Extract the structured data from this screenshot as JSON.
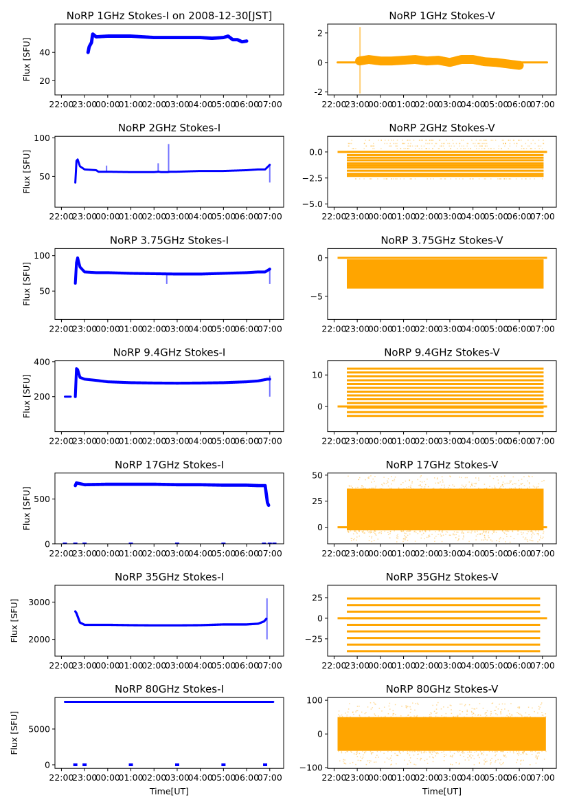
{
  "figure": {
    "xlabel": "Time[UT]",
    "ylabel": "Flux [SFU]",
    "colors": {
      "stokes_i": "#0000ff",
      "stokes_v": "#ffa500",
      "axes": "#000000"
    }
  },
  "chart_data": [
    {
      "type": "scatter",
      "panel": "1GHz-I",
      "title": "NoRP 1GHz Stokes-I on 2008-12-30[JST]",
      "xlabel": "",
      "ylabel": "Flux [SFU]",
      "x_ticks": [
        "22:00",
        "23:00",
        "00:00",
        "01:00",
        "02:00",
        "03:00",
        "04:00",
        "05:00",
        "06:00",
        "07:00"
      ],
      "xlim_hours": [
        21.72,
        31.6
      ],
      "ylim": [
        10,
        60
      ],
      "y_ticks": [
        20,
        40
      ],
      "color": "#0000ff",
      "series": [
        {
          "name": "Stokes-I",
          "x_hours": [
            23.15,
            23.2,
            23.3,
            23.35,
            23.5,
            24.0,
            24.5,
            25.0,
            25.5,
            26.0,
            26.5,
            27.0,
            27.5,
            28.0,
            28.5,
            29.0,
            29.2,
            29.4,
            29.6,
            29.8,
            30.0
          ],
          "y": [
            40,
            44,
            47,
            53,
            51,
            51.5,
            51.5,
            51.5,
            51,
            50.5,
            50.5,
            50.5,
            50.5,
            50.5,
            50,
            50.5,
            51.5,
            49,
            49,
            47.5,
            48
          ],
          "spread": 1.2
        }
      ]
    },
    {
      "type": "scatter",
      "panel": "1GHz-V",
      "title": "NoRP 1GHz Stokes-V",
      "xlabel": "",
      "ylabel": "",
      "x_ticks": [
        "22:00",
        "23:00",
        "00:00",
        "01:00",
        "02:00",
        "03:00",
        "04:00",
        "05:00",
        "06:00",
        "07:00"
      ],
      "xlim_hours": [
        21.72,
        31.6
      ],
      "ylim": [
        -2.2,
        2.6
      ],
      "y_ticks": [
        -2,
        0,
        2
      ],
      "color": "#ffa500",
      "series": [
        {
          "name": "baseline",
          "x_hours": [
            22.15,
            31.2
          ],
          "y": [
            0,
            0
          ],
          "spread": 0.02
        },
        {
          "name": "Stokes-V",
          "x_hours": [
            23.1,
            23.5,
            24.0,
            24.5,
            25.0,
            25.5,
            26.0,
            26.5,
            27.0,
            27.5,
            28.0,
            28.5,
            29.0,
            29.5,
            30.0
          ],
          "y": [
            0.1,
            0.2,
            0.1,
            0.1,
            0.15,
            0.2,
            0.1,
            0.15,
            0.0,
            0.2,
            0.2,
            0.05,
            0.0,
            -0.1,
            -0.2
          ],
          "spread": 0.3
        }
      ],
      "annotations": [
        {
          "x_hours": 23.12,
          "y_range": [
            -2.1,
            2.4
          ],
          "note": "spike"
        }
      ]
    },
    {
      "type": "scatter",
      "panel": "2GHz-I",
      "title": "NoRP 2GHz Stokes-I",
      "xlabel": "",
      "ylabel": "Flux [SFU]",
      "x_ticks": [
        "22:00",
        "23:00",
        "00:00",
        "01:00",
        "02:00",
        "03:00",
        "04:00",
        "05:00",
        "06:00",
        "07:00"
      ],
      "xlim_hours": [
        21.72,
        31.6
      ],
      "ylim": [
        10,
        102
      ],
      "y_ticks": [
        50,
        100
      ],
      "color": "#0000ff",
      "series": [
        {
          "name": "Stokes-I",
          "x_hours": [
            22.6,
            22.65,
            22.7,
            22.8,
            23.0,
            23.5,
            23.6,
            24.0,
            25.0,
            26.0,
            26.2,
            26.3,
            26.6,
            26.7,
            27.0,
            28.0,
            29.0,
            30.0,
            30.5,
            30.8,
            31.0
          ],
          "y": [
            42,
            70,
            72,
            63,
            59,
            58,
            56,
            56,
            55.5,
            55.5,
            56,
            55.5,
            55.5,
            56,
            56,
            57,
            57,
            58,
            59,
            59,
            65
          ],
          "spread": 1.2
        }
      ],
      "annotations": [
        {
          "x_hours": 26.18,
          "y_range": [
            55,
            67
          ],
          "note": "spike"
        },
        {
          "x_hours": 26.63,
          "y_range": [
            55,
            92
          ],
          "note": "spike"
        },
        {
          "x_hours": 23.95,
          "y_range": [
            56,
            64
          ],
          "note": "spike"
        },
        {
          "x_hours": 31.0,
          "y_range": [
            42,
            66
          ],
          "note": "spike"
        }
      ]
    },
    {
      "type": "scatter",
      "panel": "2GHz-V",
      "title": "NoRP 2GHz Stokes-V",
      "xlabel": "",
      "ylabel": "",
      "x_ticks": [
        "22:00",
        "23:00",
        "00:00",
        "01:00",
        "02:00",
        "03:00",
        "04:00",
        "05:00",
        "06:00",
        "07:00"
      ],
      "xlim_hours": [
        21.72,
        31.6
      ],
      "ylim": [
        -5.3,
        1.5
      ],
      "y_ticks": [
        -5.0,
        -2.5,
        0.0
      ],
      "y_tick_labels": [
        "−5.0",
        "−2.5",
        "0.0"
      ],
      "color": "#ffa500",
      "quantized_levels": [
        1.1,
        0.8,
        0.55,
        0.3,
        0.0,
        -0.3,
        -0.55,
        -0.8,
        -1.1,
        -1.3,
        -1.5,
        -1.8,
        -2.1,
        -2.3,
        -2.6
      ],
      "series": [
        {
          "name": "baseline",
          "x_hours": [
            22.15,
            31.2
          ],
          "y": [
            0,
            0
          ]
        },
        {
          "name": "Stokes-V",
          "x_hours": [
            22.55,
            31.05
          ],
          "y_band": [
            -2.3,
            0.0
          ]
        }
      ]
    },
    {
      "type": "scatter",
      "panel": "3.75GHz-I",
      "title": "NoRP 3.75GHz Stokes-I",
      "xlabel": "",
      "ylabel": "Flux [SFU]",
      "x_ticks": [
        "22:00",
        "23:00",
        "00:00",
        "01:00",
        "02:00",
        "03:00",
        "04:00",
        "05:00",
        "06:00",
        "07:00"
      ],
      "xlim_hours": [
        21.72,
        31.6
      ],
      "ylim": [
        10,
        110
      ],
      "y_ticks": [
        50,
        100
      ],
      "color": "#0000ff",
      "series": [
        {
          "name": "Stokes-I",
          "x_hours": [
            22.6,
            22.65,
            22.7,
            22.8,
            23.0,
            23.5,
            24.0,
            25.0,
            26.0,
            27.0,
            28.0,
            29.0,
            30.0,
            30.5,
            30.8,
            31.0
          ],
          "y": [
            61,
            90,
            97,
            84,
            77,
            76,
            76,
            75,
            74.5,
            74,
            74,
            75,
            76,
            77,
            77,
            81
          ],
          "spread": 2
        }
      ],
      "annotations": [
        {
          "x_hours": 26.55,
          "y_range": [
            60,
            75
          ],
          "note": "dip"
        },
        {
          "x_hours": 31.0,
          "y_range": [
            60,
            80
          ],
          "note": "dip"
        }
      ]
    },
    {
      "type": "scatter",
      "panel": "3.75GHz-V",
      "title": "NoRP 3.75GHz Stokes-V",
      "xlabel": "",
      "ylabel": "",
      "x_ticks": [
        "22:00",
        "23:00",
        "00:00",
        "01:00",
        "02:00",
        "03:00",
        "04:00",
        "05:00",
        "06:00",
        "07:00"
      ],
      "xlim_hours": [
        21.72,
        31.6
      ],
      "ylim": [
        -8,
        1.2
      ],
      "y_ticks": [
        -5,
        0
      ],
      "y_tick_labels": [
        "−5",
        "0"
      ],
      "color": "#ffa500",
      "series": [
        {
          "name": "baseline",
          "x_hours": [
            22.15,
            31.2
          ],
          "y": [
            0,
            0
          ]
        },
        {
          "name": "Stokes-V",
          "x_hours": [
            22.55,
            31.05
          ],
          "y_band": [
            -4.0,
            -0.2
          ]
        }
      ]
    },
    {
      "type": "scatter",
      "panel": "9.4GHz-I",
      "title": "NoRP 9.4GHz Stokes-I",
      "xlabel": "",
      "ylabel": "Flux [SFU]",
      "x_ticks": [
        "22:00",
        "23:00",
        "00:00",
        "01:00",
        "02:00",
        "03:00",
        "04:00",
        "05:00",
        "06:00",
        "07:00"
      ],
      "xlim_hours": [
        21.72,
        31.6
      ],
      "ylim": [
        0,
        405
      ],
      "y_ticks": [
        200,
        400
      ],
      "color": "#0000ff",
      "series": [
        {
          "name": "pre",
          "x_hours": [
            22.15,
            22.4
          ],
          "y": [
            200,
            200
          ],
          "spread": 3
        },
        {
          "name": "Stokes-I",
          "x_hours": [
            22.6,
            22.65,
            22.7,
            22.8,
            23.0,
            23.5,
            24.0,
            25.0,
            26.0,
            27.0,
            28.0,
            29.0,
            30.0,
            30.5,
            30.9,
            31.0
          ],
          "y": [
            200,
            360,
            355,
            310,
            300,
            293,
            285,
            280,
            278,
            277,
            278,
            280,
            285,
            290,
            300,
            300
          ],
          "spread": 8
        }
      ],
      "annotations": [
        {
          "x_hours": 31.0,
          "y_range": [
            200,
            320
          ],
          "note": "dip"
        }
      ]
    },
    {
      "type": "scatter",
      "panel": "9.4GHz-V",
      "title": "NoRP 9.4GHz Stokes-V",
      "xlabel": "",
      "ylabel": "",
      "x_ticks": [
        "22:00",
        "23:00",
        "00:00",
        "01:00",
        "02:00",
        "03:00",
        "04:00",
        "05:00",
        "06:00",
        "07:00"
      ],
      "xlim_hours": [
        21.72,
        31.6
      ],
      "ylim": [
        -8,
        14.5
      ],
      "y_ticks": [
        0,
        10
      ],
      "color": "#ffa500",
      "quantized_levels": [
        12,
        10.8,
        9.6,
        8.3,
        7.1,
        5.9,
        4.7,
        3.5,
        2.3,
        1.1,
        -0.4,
        -1.8,
        -3.0
      ],
      "series": [
        {
          "name": "baseline",
          "x_hours": [
            22.15,
            31.2
          ],
          "y": [
            0,
            0
          ]
        },
        {
          "name": "Stokes-V",
          "x_hours": [
            22.55,
            31.05
          ],
          "y_band": [
            -3,
            12
          ]
        }
      ]
    },
    {
      "type": "scatter",
      "panel": "17GHz-I",
      "title": "NoRP 17GHz Stokes-I",
      "xlabel": "",
      "ylabel": "Flux [SFU]",
      "x_ticks": [
        "22:00",
        "23:00",
        "00:00",
        "01:00",
        "02:00",
        "03:00",
        "04:00",
        "05:00",
        "06:00",
        "07:00"
      ],
      "xlim_hours": [
        21.72,
        31.6
      ],
      "ylim": [
        0,
        790
      ],
      "y_ticks": [
        0,
        500
      ],
      "color": "#0000ff",
      "series": [
        {
          "name": "Stokes-I",
          "x_hours": [
            22.6,
            22.65,
            23.0,
            24.0,
            25.0,
            26.0,
            27.0,
            28.0,
            29.0,
            30.0,
            30.5,
            30.8,
            30.9,
            30.95
          ],
          "y": [
            650,
            680,
            660,
            665,
            665,
            665,
            660,
            660,
            655,
            655,
            650,
            650,
            460,
            430
          ],
          "spread": 18
        },
        {
          "name": "zeros",
          "x_hours": [
            22.15,
            22.6,
            23.0,
            25.0,
            27.0,
            29.0,
            30.75,
            31.0,
            31.2
          ],
          "y": [
            0,
            0,
            0,
            0,
            0,
            0,
            0,
            0,
            0
          ]
        }
      ]
    },
    {
      "type": "scatter",
      "panel": "17GHz-V",
      "title": "NoRP 17GHz Stokes-V",
      "xlabel": "",
      "ylabel": "",
      "x_ticks": [
        "22:00",
        "23:00",
        "00:00",
        "01:00",
        "02:00",
        "03:00",
        "04:00",
        "05:00",
        "06:00",
        "07:00"
      ],
      "xlim_hours": [
        21.72,
        31.6
      ],
      "ylim": [
        -16,
        52
      ],
      "y_ticks": [
        0,
        25,
        50
      ],
      "color": "#ffa500",
      "series": [
        {
          "name": "baseline",
          "x_hours": [
            22.15,
            31.2
          ],
          "y": [
            0,
            0
          ]
        },
        {
          "name": "Stokes-V",
          "x_hours": [
            22.55,
            31.05
          ],
          "y_band": [
            -3,
            37
          ],
          "outlier_band": [
            -14,
            50
          ]
        }
      ]
    },
    {
      "type": "scatter",
      "panel": "35GHz-I",
      "title": "NoRP 35GHz Stokes-I",
      "xlabel": "",
      "ylabel": "Flux [SFU]",
      "x_ticks": [
        "22:00",
        "23:00",
        "00:00",
        "01:00",
        "02:00",
        "03:00",
        "04:00",
        "05:00",
        "06:00",
        "07:00"
      ],
      "xlim_hours": [
        21.72,
        31.6
      ],
      "ylim": [
        1550,
        3450
      ],
      "y_ticks": [
        2000,
        3000
      ],
      "color": "#0000ff",
      "series": [
        {
          "name": "Stokes-I",
          "x_hours": [
            22.6,
            22.65,
            22.8,
            23.0,
            24.0,
            25.0,
            26.0,
            27.0,
            28.0,
            29.0,
            29.5,
            30.0,
            30.5,
            30.75,
            30.85
          ],
          "y": [
            2750,
            2700,
            2450,
            2390,
            2390,
            2380,
            2375,
            2375,
            2380,
            2400,
            2400,
            2400,
            2420,
            2480,
            2550
          ],
          "spread": 30
        }
      ],
      "annotations": [
        {
          "x_hours": 30.88,
          "y_range": [
            2000,
            3100
          ],
          "note": "spike"
        }
      ]
    },
    {
      "type": "scatter",
      "panel": "35GHz-V",
      "title": "NoRP 35GHz Stokes-V",
      "xlabel": "",
      "ylabel": "",
      "x_ticks": [
        "22:00",
        "23:00",
        "00:00",
        "01:00",
        "02:00",
        "03:00",
        "04:00",
        "05:00",
        "06:00",
        "07:00"
      ],
      "xlim_hours": [
        21.72,
        31.6
      ],
      "ylim": [
        -46,
        40
      ],
      "y_ticks": [
        -25,
        0,
        25
      ],
      "y_tick_labels": [
        "−25",
        "0",
        "25"
      ],
      "color": "#ffa500",
      "quantized_levels": [
        24,
        16,
        8,
        0,
        -8,
        -16,
        -24,
        -32,
        -40
      ],
      "series": [
        {
          "name": "baseline",
          "x_hours": [
            22.15,
            31.2
          ],
          "y": [
            0,
            0
          ]
        },
        {
          "name": "Stokes-V",
          "x_hours": [
            22.55,
            30.9
          ],
          "y_band": [
            -40,
            24
          ]
        }
      ]
    },
    {
      "type": "scatter",
      "panel": "80GHz-I",
      "title": "NoRP 80GHz Stokes-I",
      "xlabel": "Time[UT]",
      "ylabel": "Flux [SFU]",
      "x_ticks": [
        "22:00",
        "23:00",
        "00:00",
        "01:00",
        "02:00",
        "03:00",
        "04:00",
        "05:00",
        "06:00",
        "07:00"
      ],
      "xlim_hours": [
        21.72,
        31.6
      ],
      "ylim": [
        -500,
        9400
      ],
      "y_ticks": [
        0,
        5000
      ],
      "color": "#0000ff",
      "series": [
        {
          "name": "Stokes-I",
          "x_hours": [
            22.15,
            31.15
          ],
          "y": [
            8800,
            8800
          ],
          "spread": 100
        },
        {
          "name": "zeros",
          "x_hours": [
            22.6,
            23.0,
            25.0,
            27.0,
            29.0,
            30.8
          ],
          "y": [
            0,
            0,
            0,
            0,
            0,
            0
          ]
        }
      ]
    },
    {
      "type": "scatter",
      "panel": "80GHz-V",
      "title": "NoRP 80GHz Stokes-V",
      "xlabel": "Time[UT]",
      "ylabel": "",
      "x_ticks": [
        "22:00",
        "23:00",
        "00:00",
        "01:00",
        "02:00",
        "03:00",
        "04:00",
        "05:00",
        "06:00",
        "07:00"
      ],
      "xlim_hours": [
        21.72,
        31.6
      ],
      "ylim": [
        -102,
        108
      ],
      "y_ticks": [
        -100,
        0,
        100
      ],
      "y_tick_labels": [
        "−100",
        "0",
        "100"
      ],
      "color": "#ffa500",
      "series": [
        {
          "name": "Stokes-V",
          "x_hours": [
            22.15,
            31.15
          ],
          "y_band": [
            -50,
            50
          ],
          "outlier_band": [
            -90,
            95
          ]
        }
      ]
    }
  ]
}
